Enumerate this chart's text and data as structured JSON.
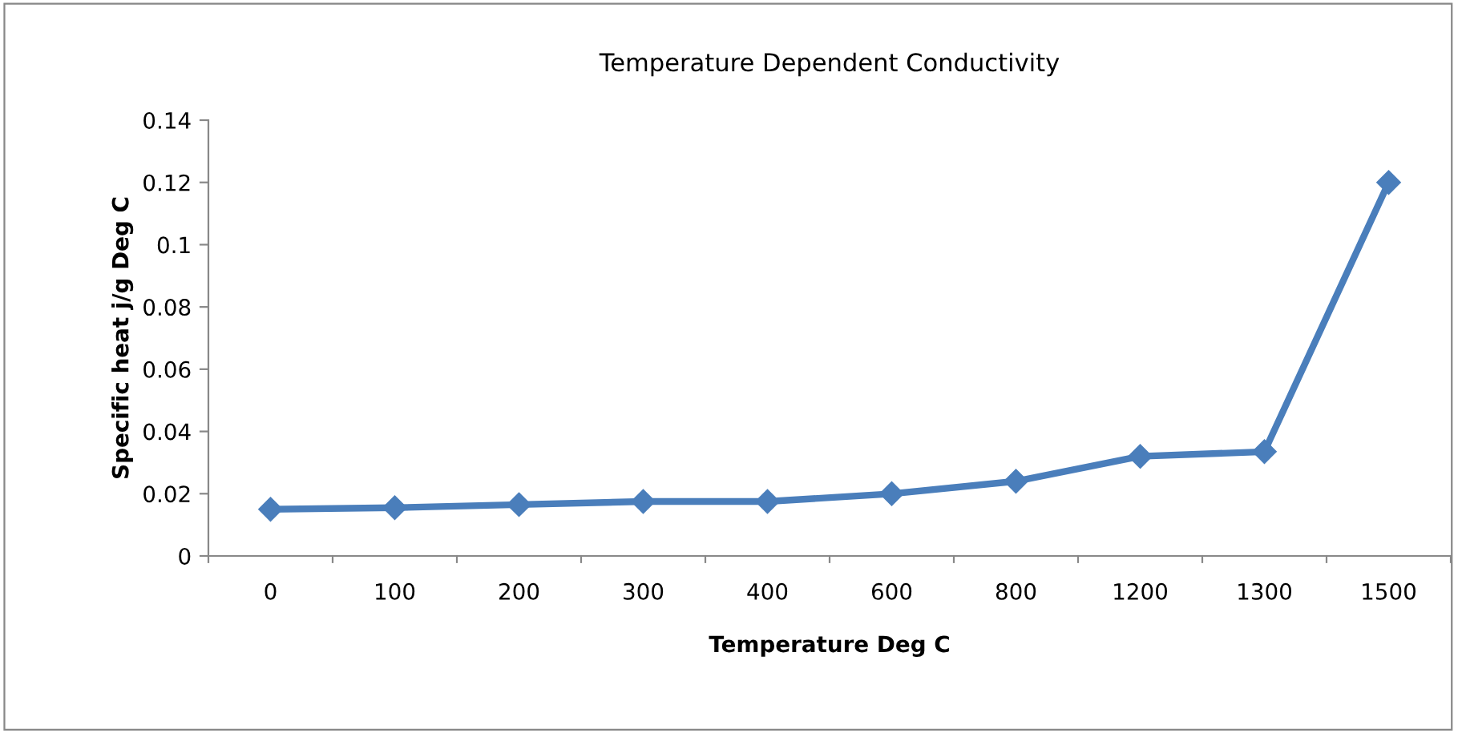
{
  "chart_data": {
    "type": "line",
    "title": "Temperature Dependent Conductivity",
    "xlabel": "Temperature Deg C",
    "ylabel": "Specific heat j/g Deg C",
    "categories": [
      "0",
      "100",
      "200",
      "300",
      "400",
      "600",
      "800",
      "1200",
      "1300",
      "1500"
    ],
    "series": [
      {
        "color": "#4a7ebb",
        "values": [
          0.015,
          0.0155,
          0.0165,
          0.0175,
          0.0175,
          0.02,
          0.024,
          0.032,
          0.0335,
          0.12
        ]
      }
    ],
    "ylim": [
      0,
      0.14
    ],
    "yticks": [
      0,
      0.02,
      0.04,
      0.06,
      0.08,
      0.1,
      0.12,
      0.14
    ],
    "grid": false,
    "legend": false,
    "marker": "diamond",
    "line_style": "solid"
  }
}
